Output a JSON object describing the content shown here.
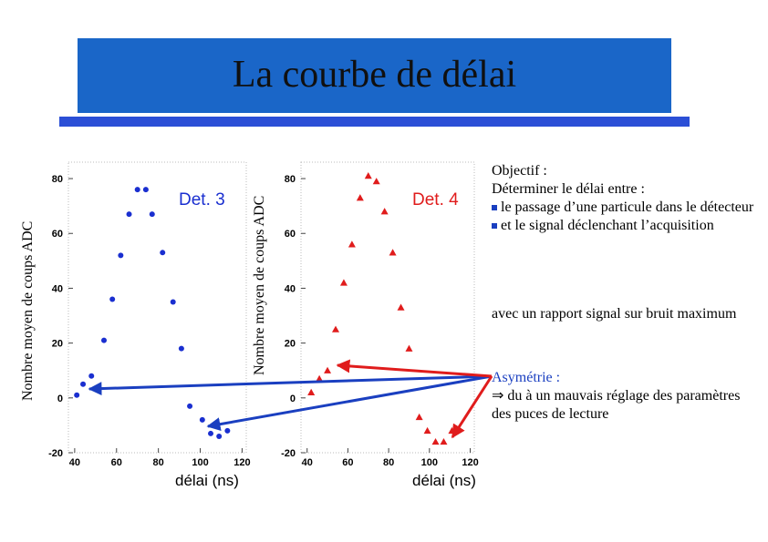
{
  "title": "La courbe de délai",
  "left_ylabel": "Nombre moyen de coups ADC",
  "right_ylabel": "Nombre moyen de coups ADC",
  "left_xlabel": "délai (ns)",
  "right_xlabel": "délai (ns)",
  "side": {
    "objectif_title": "Objectif :",
    "objectif_line1": "Déterminer le délai entre :",
    "bullet1": "le passage d’une particule dans le détecteur",
    "bullet2": "et le signal déclenchant l’acquisition",
    "rapport": "avec un rapport signal sur bruit maximum",
    "asym_title": "Asymétrie :",
    "asym_text": "⇒ du à un mauvais réglage des paramètres des puces de lecture"
  },
  "colors": {
    "det3": "#1a2fd0",
    "det4": "#e01c1c",
    "title_bg": "#1a66c8",
    "bar": "#2b4fd6"
  },
  "chart_data": [
    {
      "type": "scatter",
      "label": "Det. 3",
      "xticks": [
        "40",
        "60",
        "80",
        "100",
        "120"
      ],
      "yticks": [
        "-20",
        "0",
        "20",
        "40",
        "60",
        "80"
      ],
      "xlim": [
        37,
        122
      ],
      "ylim": [
        -20,
        86
      ],
      "x": [
        41,
        44,
        48,
        54,
        58,
        62,
        66,
        70,
        74,
        77,
        82,
        87,
        91,
        95,
        101,
        105,
        109,
        113
      ],
      "y": [
        1,
        5,
        8,
        21,
        36,
        52,
        67,
        76,
        76,
        67,
        53,
        35,
        18,
        -3,
        -8,
        -13,
        -14,
        -12
      ]
    },
    {
      "type": "scatter",
      "label": "Det. 4",
      "xticks": [
        "40",
        "60",
        "80",
        "100",
        "120"
      ],
      "yticks": [
        "-20",
        "0",
        "20",
        "40",
        "60",
        "80"
      ],
      "xlim": [
        37,
        122
      ],
      "ylim": [
        -20,
        86
      ],
      "x": [
        42,
        46,
        50,
        54,
        58,
        62,
        66,
        70,
        74,
        78,
        82,
        86,
        90,
        95,
        99,
        103,
        107,
        111
      ],
      "y": [
        2,
        7,
        10,
        25,
        42,
        56,
        73,
        81,
        79,
        68,
        53,
        33,
        18,
        -7,
        -12,
        -16,
        -16,
        -12
      ]
    }
  ]
}
